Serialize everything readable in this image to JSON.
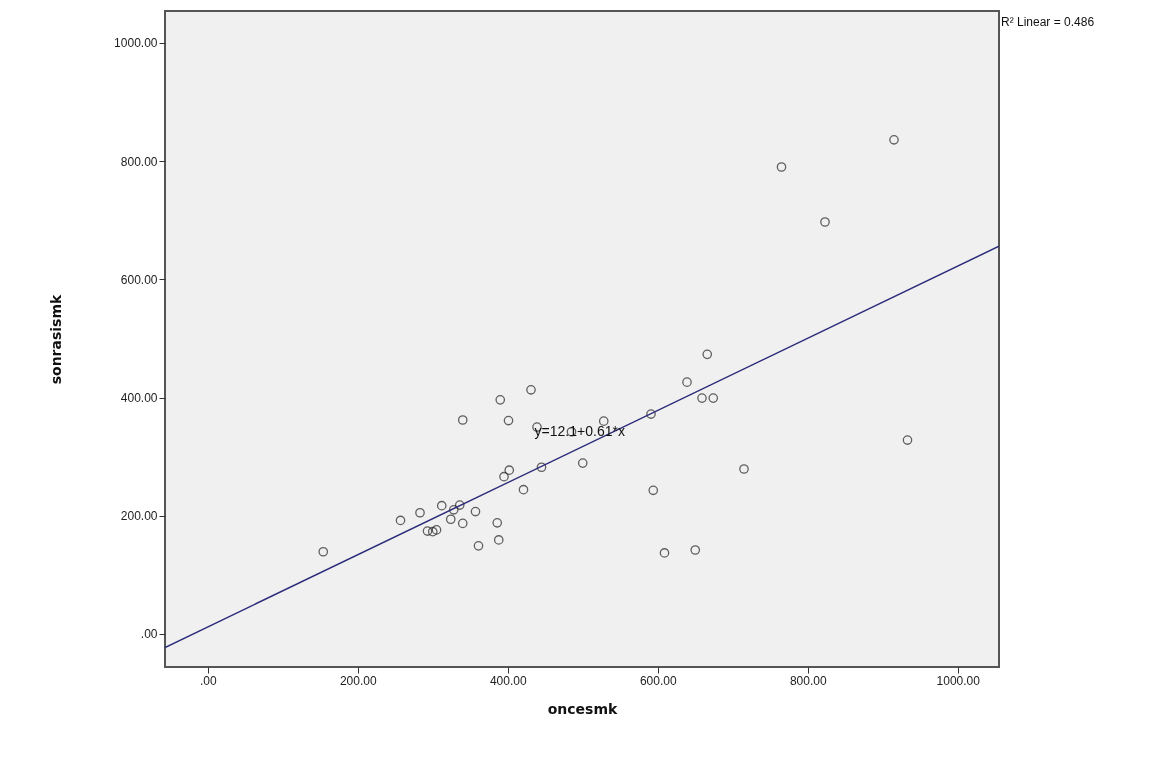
{
  "chart_data": {
    "type": "scatter",
    "xlabel": "oncesmk",
    "ylabel": "sonrasismk",
    "xlim": [
      -57,
      1055
    ],
    "ylim": [
      -56,
      1054
    ],
    "xticks": [
      {
        "value": 0,
        "label": ".00"
      },
      {
        "value": 200,
        "label": "200.00"
      },
      {
        "value": 400,
        "label": "400.00"
      },
      {
        "value": 600,
        "label": "600.00"
      },
      {
        "value": 800,
        "label": "800.00"
      },
      {
        "value": 1000,
        "label": "1000.00"
      }
    ],
    "yticks": [
      {
        "value": 0,
        "label": ".00"
      },
      {
        "value": 200,
        "label": "200.00"
      },
      {
        "value": 400,
        "label": "400.00"
      },
      {
        "value": 600,
        "label": "600.00"
      },
      {
        "value": 800,
        "label": "800.00"
      },
      {
        "value": 1000,
        "label": "1000.00"
      }
    ],
    "grid": false,
    "series": [
      {
        "marker": "circle",
        "color": "#222222",
        "x": [
          154,
          257,
          283,
          293,
          300,
          305,
          312,
          324,
          328,
          336,
          340,
          357,
          361,
          386,
          388,
          340,
          390,
          431,
          401,
          439,
          395,
          402,
          421,
          445,
          485,
          500,
          528,
          591,
          639,
          666,
          659,
          674,
          715,
          594,
          609,
          650,
          933,
          765,
          823,
          915
        ],
        "values": [
          139,
          192,
          205,
          174,
          173,
          176,
          217,
          194,
          210,
          218,
          187,
          207,
          149,
          188,
          159,
          362,
          396,
          413,
          361,
          350,
          266,
          277,
          244,
          282,
          342,
          289,
          360,
          372,
          426,
          473,
          399,
          399,
          279,
          243,
          137,
          142,
          328,
          790,
          697,
          836
        ]
      },
      {
        "type": "line",
        "color": "#2b2b7a",
        "x": [
          -57,
          1055
        ],
        "values": [
          -23,
          656
        ]
      }
    ],
    "annotations": [
      "R² Linear = 0.486",
      {
        "text": "y=12.1+0.61*x",
        "x": 496,
        "y": 315
      }
    ]
  }
}
